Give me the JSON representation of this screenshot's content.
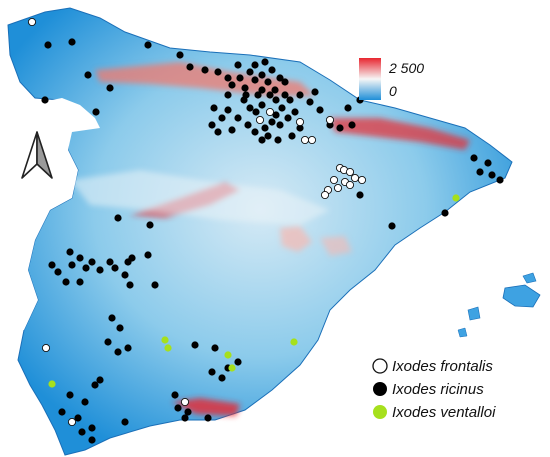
{
  "colors": {
    "low": "#1f8fd8",
    "mid": "#cfe6f3",
    "high": "#e8262f",
    "frontalis_fill": "#ffffff",
    "ricinus_fill": "#000000",
    "ventalloi_fill": "#a6e01d"
  },
  "scale": {
    "max_label": "2 500",
    "min_label": "0",
    "max_value": 2500,
    "min_value": 0
  },
  "north_arrow": {
    "icon": "north-arrow-icon"
  },
  "legend": {
    "frontalis": "Ixodes frontalis",
    "ricinus": "Ixodes ricinus",
    "ventalloi": "Ixodes ventalloi"
  }
}
